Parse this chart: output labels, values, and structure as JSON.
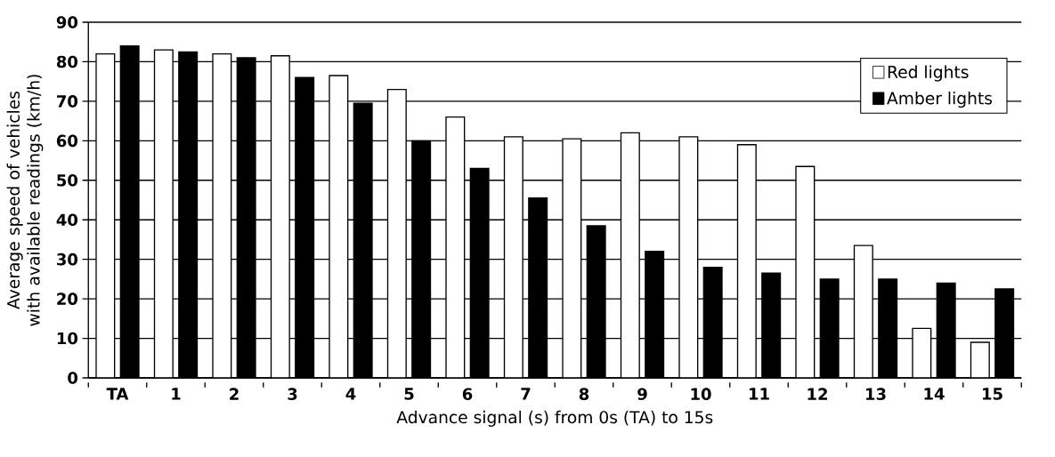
{
  "chart_data": {
    "type": "bar",
    "xlabel": "Advance signal (s) from 0s (TA) to 15s",
    "ylabel": "Average speed of vehicles with available readings (km/h)",
    "categories": [
      "TA",
      "1",
      "2",
      "3",
      "4",
      "5",
      "6",
      "7",
      "8",
      "9",
      "10",
      "11",
      "12",
      "13",
      "14",
      "15"
    ],
    "series": [
      {
        "name": "Red lights",
        "color": "#ffffff",
        "values": [
          82,
          83,
          82,
          81.5,
          76.5,
          73,
          66,
          61,
          60.5,
          62,
          61,
          59,
          53.5,
          33.5,
          12.5,
          9
        ]
      },
      {
        "name": "Amber lights",
        "color": "#000000",
        "values": [
          84,
          82.5,
          81,
          76,
          69.5,
          60,
          53,
          45.5,
          38.5,
          32,
          28,
          26.5,
          25,
          25,
          24,
          22.5
        ]
      }
    ],
    "ylim": [
      0,
      90
    ],
    "yticks": [
      0,
      10,
      20,
      30,
      40,
      50,
      60,
      70,
      80,
      90
    ],
    "grid": "y",
    "legend": "top right"
  }
}
